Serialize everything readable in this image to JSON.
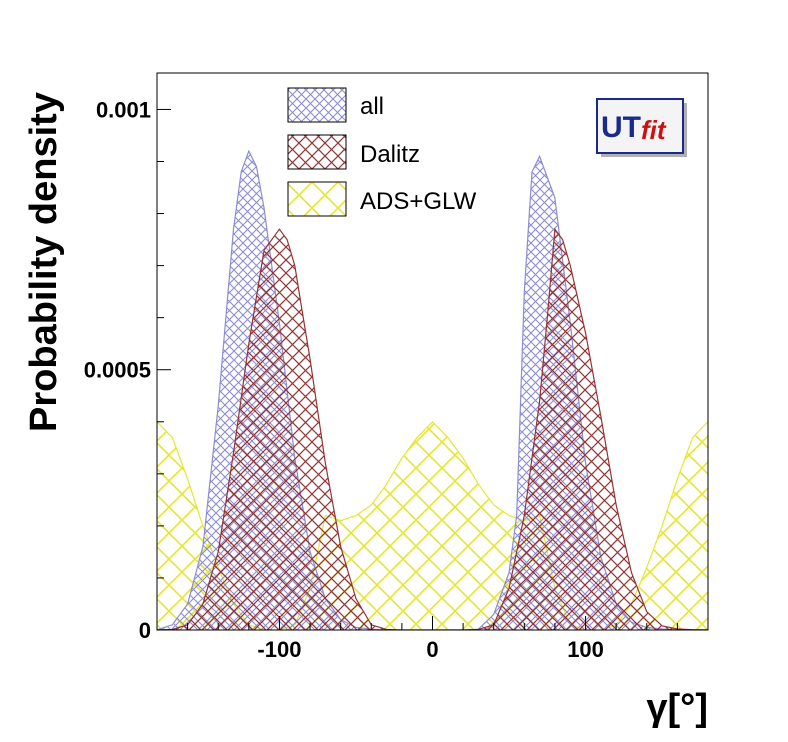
{
  "chart_data": {
    "type": "area",
    "xlabel": "γ[°]",
    "ylabel": "Probability density",
    "xlim": [
      -180,
      180
    ],
    "ylim": [
      0,
      0.00107
    ],
    "x_ticks": [
      -100,
      0,
      100
    ],
    "x_tick_labels": [
      "-100",
      "0",
      "100"
    ],
    "y_ticks": [
      0,
      0.0005,
      0.001
    ],
    "y_tick_labels": [
      "0",
      "0.0005",
      "0.001"
    ],
    "grid": false,
    "legend_position": "top-left",
    "series": [
      {
        "name": "all",
        "color": "#8c8cd2",
        "fill_style": "crosshatch",
        "x": [
          -180,
          -170,
          -160,
          -150,
          -140,
          -130,
          -125,
          -120,
          -115,
          -110,
          -100,
          -90,
          -80,
          -70,
          -60,
          -50,
          -40,
          -30,
          -20,
          -10,
          0,
          10,
          20,
          30,
          40,
          50,
          55,
          60,
          65,
          70,
          80,
          90,
          100,
          110,
          120,
          130,
          140,
          150,
          160,
          170,
          180
        ],
        "y": [
          1e-07,
          1e-05,
          5e-05,
          0.00016,
          0.00043,
          0.00077,
          0.00088,
          0.00092,
          0.00089,
          0.00081,
          0.00059,
          0.00033,
          0.00015,
          6e-05,
          2e-05,
          5e-06,
          1.5e-06,
          0,
          0,
          0,
          0,
          0,
          0,
          1.5e-06,
          3e-05,
          0.00011,
          0.00022,
          0.00065,
          0.00088,
          0.00091,
          0.00083,
          0.00059,
          0.00032,
          0.00014,
          5e-05,
          1.5e-05,
          5e-06,
          2e-06,
          1e-06,
          5e-07,
          1e-07
        ]
      },
      {
        "name": "Dalitz",
        "color": "#963232",
        "fill_style": "crosshatch",
        "x": [
          -180,
          -170,
          -160,
          -150,
          -140,
          -130,
          -120,
          -110,
          -100,
          -95,
          -90,
          -85,
          -80,
          -70,
          -60,
          -50,
          -40,
          -30,
          -20,
          0,
          20,
          30,
          40,
          50,
          60,
          70,
          75,
          80,
          85,
          90,
          100,
          110,
          120,
          130,
          140,
          150,
          160,
          170,
          180
        ],
        "y": [
          1e-07,
          1e-06,
          1e-05,
          5e-05,
          0.00015,
          0.00034,
          0.00055,
          0.00073,
          0.00077,
          0.00075,
          0.0007,
          0.00061,
          0.00052,
          0.00032,
          0.00016,
          6e-05,
          1e-05,
          1e-06,
          0,
          0,
          0,
          1e-06,
          1e-05,
          8e-05,
          0.00022,
          0.00044,
          0.0006,
          0.00077,
          0.00075,
          0.0007,
          0.00057,
          0.00041,
          0.00024,
          0.00011,
          3.5e-05,
          8e-06,
          2e-06,
          5e-07,
          1e-07
        ]
      },
      {
        "name": "ADS+GLW",
        "color": "#e6e632",
        "fill_style": "crosshatch",
        "x": [
          -180,
          -170,
          -160,
          -150,
          -140,
          -130,
          -120,
          -110,
          -100,
          -90,
          -80,
          -70,
          -60,
          -50,
          -40,
          -30,
          -20,
          -10,
          0,
          10,
          20,
          30,
          40,
          50,
          60,
          70,
          80,
          90,
          100,
          110,
          120,
          130,
          140,
          150,
          160,
          170,
          180
        ],
        "y": [
          0.0004,
          0.00037,
          0.00029,
          0.0002,
          0.00012,
          5e-05,
          1e-05,
          0,
          0,
          1e-05,
          8e-05,
          0.00022,
          0.00021,
          0.00022,
          0.00024,
          0.00028,
          0.00033,
          0.00037,
          0.0004,
          0.00037,
          0.00033,
          0.00028,
          0.00024,
          0.00022,
          0.00021,
          0.00022,
          8e-05,
          1e-05,
          0,
          0,
          1e-05,
          5e-05,
          0.00012,
          0.0002,
          0.00029,
          0.00037,
          0.0004
        ]
      }
    ]
  },
  "legend": {
    "items": [
      {
        "label": "all",
        "color": "#8c8cd2"
      },
      {
        "label": "Dalitz",
        "color": "#963232"
      },
      {
        "label": "ADS+GLW",
        "color": "#e6e632"
      }
    ]
  },
  "logo": {
    "text_a": "UT",
    "text_b": "fit",
    "color_a": "#1a2a8c",
    "color_b": "#cc1111"
  }
}
